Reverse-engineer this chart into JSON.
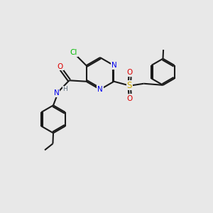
{
  "bg_color": "#e8e8e8",
  "bond_color": "#1a1a1a",
  "N_color": "#0000ee",
  "O_color": "#dd0000",
  "S_color": "#ccaa00",
  "Cl_color": "#00bb00",
  "H_color": "#607080",
  "lw": 1.5,
  "dbo": 0.055,
  "xlim": [
    0,
    10
  ],
  "ylim": [
    0,
    10
  ]
}
